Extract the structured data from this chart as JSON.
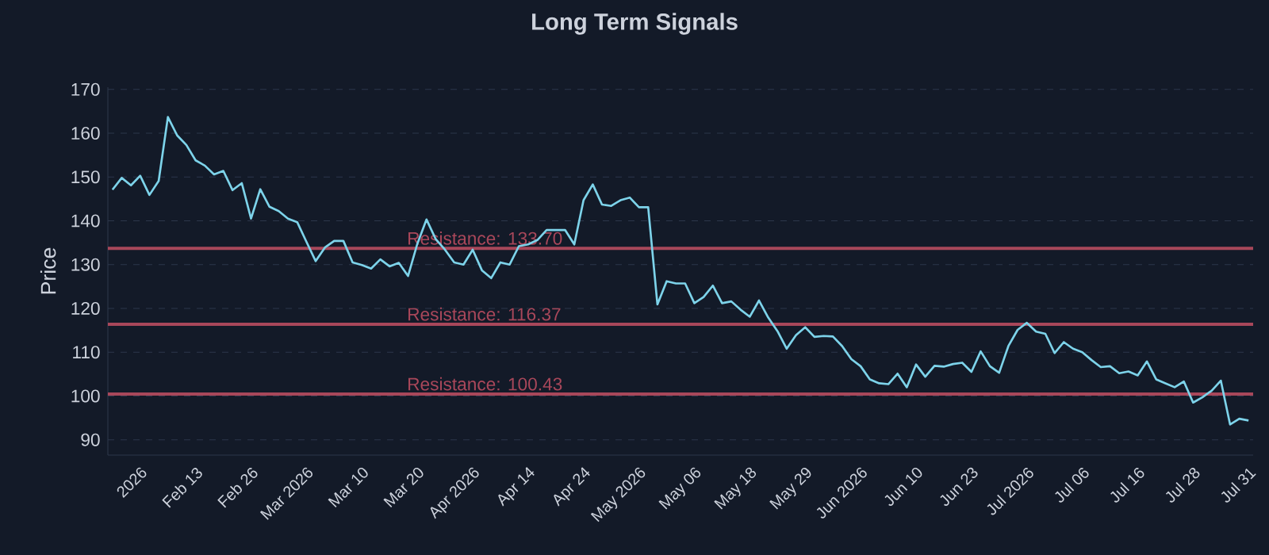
{
  "chart_data": {
    "type": "line",
    "title": "Long Term Signals",
    "ylabel": "Price",
    "categories": [
      null,
      null,
      null,
      "2026",
      null,
      null,
      null,
      null,
      null,
      "Feb 13",
      null,
      null,
      null,
      null,
      null,
      "Feb 26",
      null,
      null,
      null,
      null,
      null,
      "Mar 2026",
      null,
      null,
      null,
      null,
      null,
      "Mar 10",
      null,
      null,
      null,
      null,
      null,
      "Mar 20",
      null,
      null,
      null,
      null,
      null,
      "Apr 2026",
      null,
      null,
      null,
      null,
      null,
      "Apr 14",
      null,
      null,
      null,
      null,
      null,
      "Apr 24",
      null,
      null,
      null,
      null,
      null,
      "May 2026",
      null,
      null,
      null,
      null,
      null,
      "May 06",
      null,
      null,
      null,
      null,
      null,
      "May 18",
      null,
      null,
      null,
      null,
      null,
      "May 29",
      null,
      null,
      null,
      null,
      null,
      "Jun 2026",
      null,
      null,
      null,
      null,
      null,
      "Jun 10",
      null,
      null,
      null,
      null,
      null,
      "Jun 23",
      null,
      null,
      null,
      null,
      null,
      "Jul 2026",
      null,
      null,
      null,
      null,
      null,
      "Jul 06",
      null,
      null,
      null,
      null,
      null,
      "Jul 16",
      null,
      null,
      null,
      null,
      null,
      "Jul 28",
      null,
      null,
      null,
      null,
      null,
      "Jul 31"
    ],
    "series": [
      {
        "color": "#7dd3ea",
        "values": [
          147.1,
          149.8,
          148.1,
          150.3,
          145.9,
          149.1,
          163.7,
          159.5,
          157.3,
          153.8,
          152.6,
          150.6,
          151.4,
          147,
          148.6,
          140.5,
          147.2,
          143.2,
          142.2,
          140.5,
          139.7,
          135.2,
          130.8,
          133.9,
          135.4,
          135.4,
          130.5,
          129.9,
          129.1,
          131.2,
          129.6,
          130.4,
          127.4,
          134.7,
          140.3,
          135.8,
          133.4,
          130.5,
          130.0,
          133.4,
          128.7,
          126.9,
          130.5,
          130.0,
          134.2,
          134.6,
          135.6,
          137.9,
          137.9,
          137.9,
          134.6,
          144.7,
          148.3,
          143.7,
          143.4,
          144.7,
          145.3,
          143.1,
          143.1,
          120.9,
          126.2,
          125.7,
          125.7,
          121.2,
          122.6,
          125.2,
          121.2,
          121.6,
          119.7,
          118.1,
          121.8,
          117.9,
          114.8,
          110.8,
          113.9,
          115.7,
          113.5,
          113.7,
          113.6,
          111.4,
          108.4,
          106.8,
          103.8,
          102.9,
          102.7,
          105.1,
          102.0,
          107.2,
          104.4,
          106.9,
          106.7,
          107.3,
          107.6,
          105.5,
          110.2,
          106.8,
          105.3,
          111.4,
          115.1,
          116.7,
          114.7,
          114.2,
          109.8,
          112.3,
          110.8,
          110.0,
          108.2,
          106.6,
          106.8,
          105.2,
          105.6,
          104.7,
          107.9,
          103.8,
          102.9,
          102.0,
          103.3,
          98.5,
          99.7,
          101.2,
          103.5,
          93.5,
          94.8,
          94.4
        ]
      }
    ],
    "ylim": [
      86.5,
      170.5
    ],
    "yticks": [
      90,
      100,
      110,
      120,
      130,
      140,
      150,
      160,
      170
    ],
    "grid": "y",
    "ref_lines": [
      {
        "axis": "y",
        "value": 133.7,
        "label": "Resistance: 133.70",
        "color": "#a8475a"
      },
      {
        "axis": "y",
        "value": 116.37,
        "label": "Resistance: 116.37",
        "color": "#a8475a"
      },
      {
        "axis": "y",
        "value": 100.43,
        "label": "Resistance: 100.43",
        "color": "#a8475a"
      }
    ]
  }
}
